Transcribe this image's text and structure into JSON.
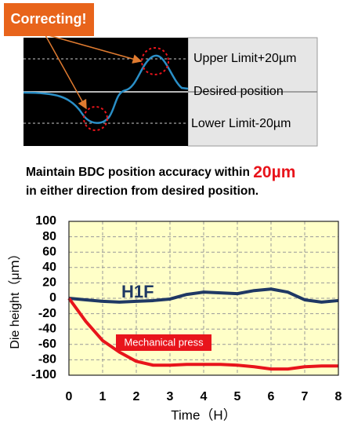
{
  "badge": "Correcting!",
  "diagram": {
    "upper": "Upper Limit+20µm",
    "desired": "Desired position",
    "lower": "Lower Limit-20µm"
  },
  "caption": {
    "text": "Maintain BDC position accuracy within ",
    "highlight": "20µm",
    "line2": "in either direction from desired position."
  },
  "chart_data": {
    "type": "line",
    "x": [
      0,
      0.5,
      1,
      1.5,
      2,
      2.5,
      3,
      3.5,
      4,
      4.5,
      5,
      5.5,
      6,
      6.5,
      7,
      7.5,
      8
    ],
    "series": [
      {
        "name": "H1F",
        "color": "#1f3864",
        "values": [
          0,
          -2,
          -4,
          -5,
          -4,
          -3,
          -1,
          5,
          8,
          7,
          6,
          10,
          12,
          8,
          -2,
          -5,
          -3
        ]
      },
      {
        "name": "Mechanical press",
        "color": "#e8141b",
        "values": [
          0,
          -30,
          -55,
          -70,
          -82,
          -87,
          -87,
          -86,
          -86,
          -86,
          -87,
          -89,
          -92,
          -92,
          -89,
          -88,
          -88
        ]
      }
    ],
    "xlabel": "Time（H）",
    "ylabel": "Die height（μｍ）",
    "xlim": [
      0,
      8
    ],
    "xticks": [
      0,
      1,
      2,
      3,
      4,
      5,
      6,
      7,
      8
    ],
    "ylim": [
      -100,
      100
    ],
    "yticks": [
      -100,
      -80,
      -60,
      -40,
      -20,
      0,
      20,
      40,
      60,
      80,
      100
    ],
    "grid": true
  }
}
